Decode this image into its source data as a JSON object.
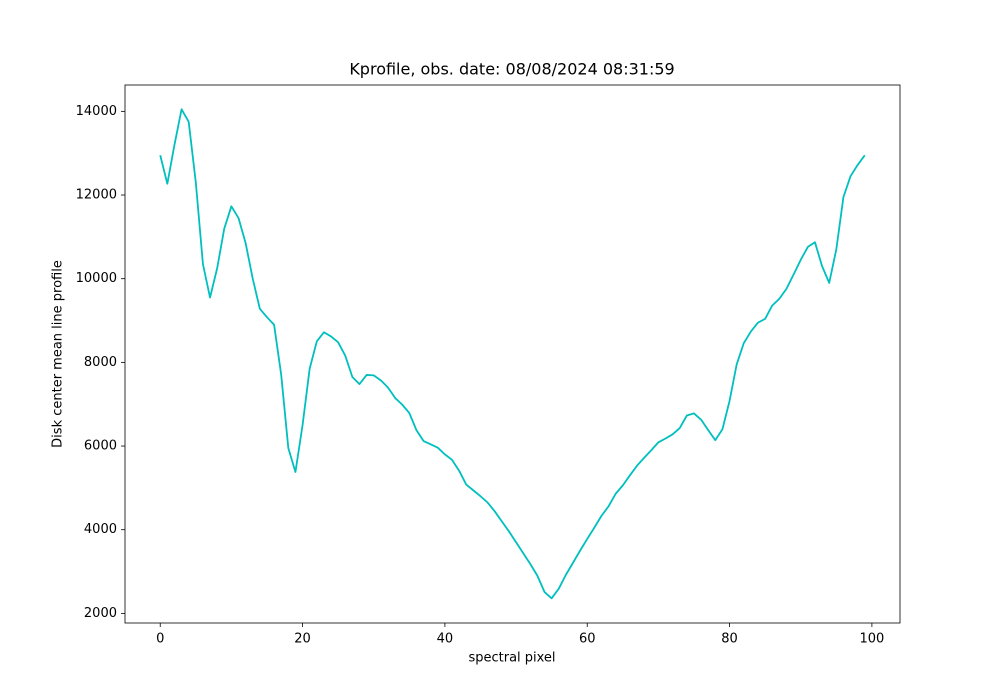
{
  "chart_data": {
    "type": "line",
    "title": "Kprofile, obs. date: 08/08/2024 08:31:59",
    "xlabel": "spectral pixel",
    "ylabel": "Disk center mean line profile",
    "x": [
      0,
      1,
      2,
      3,
      4,
      5,
      6,
      7,
      8,
      9,
      10,
      11,
      12,
      13,
      14,
      15,
      16,
      17,
      18,
      19,
      20,
      21,
      22,
      23,
      24,
      25,
      26,
      27,
      28,
      29,
      30,
      31,
      32,
      33,
      34,
      35,
      36,
      37,
      38,
      39,
      40,
      41,
      42,
      43,
      44,
      45,
      46,
      47,
      48,
      49,
      50,
      51,
      52,
      53,
      54,
      55,
      56,
      57,
      58,
      59,
      60,
      61,
      62,
      63,
      64,
      65,
      66,
      67,
      68,
      69,
      70,
      71,
      72,
      73,
      74,
      75,
      76,
      77,
      78,
      79,
      80,
      81,
      82,
      83,
      84,
      85,
      86,
      87,
      88,
      89,
      90,
      91,
      92,
      93,
      94,
      95,
      96,
      97,
      98,
      99
    ],
    "values": [
      12950,
      12270,
      13200,
      14050,
      13750,
      12300,
      10350,
      9550,
      10250,
      11200,
      11730,
      11450,
      10850,
      10000,
      9280,
      9080,
      8900,
      7700,
      5950,
      5380,
      6500,
      7850,
      8500,
      8720,
      8620,
      8480,
      8160,
      7650,
      7480,
      7700,
      7690,
      7570,
      7400,
      7150,
      6990,
      6790,
      6380,
      6120,
      6040,
      5960,
      5800,
      5670,
      5410,
      5080,
      4940,
      4800,
      4650,
      4440,
      4200,
      3960,
      3700,
      3440,
      3180,
      2900,
      2510,
      2360,
      2590,
      2920,
      3210,
      3500,
      3780,
      4050,
      4330,
      4560,
      4860,
      5060,
      5300,
      5530,
      5720,
      5900,
      6090,
      6180,
      6280,
      6430,
      6730,
      6780,
      6630,
      6380,
      6140,
      6400,
      7080,
      7950,
      8460,
      8740,
      8950,
      9040,
      9360,
      9520,
      9760,
      10100,
      10450,
      10760,
      10870,
      10300,
      9900,
      10700,
      11950,
      12450,
      12720,
      12950
    ],
    "color": "#00bfbf",
    "xlim": [
      -4.95,
      103.95
    ],
    "ylim": [
      1770,
      14630
    ],
    "xticks": [
      0,
      20,
      40,
      60,
      80,
      100
    ],
    "yticks": [
      2000,
      4000,
      6000,
      8000,
      10000,
      12000,
      14000
    ],
    "grid": false
  }
}
